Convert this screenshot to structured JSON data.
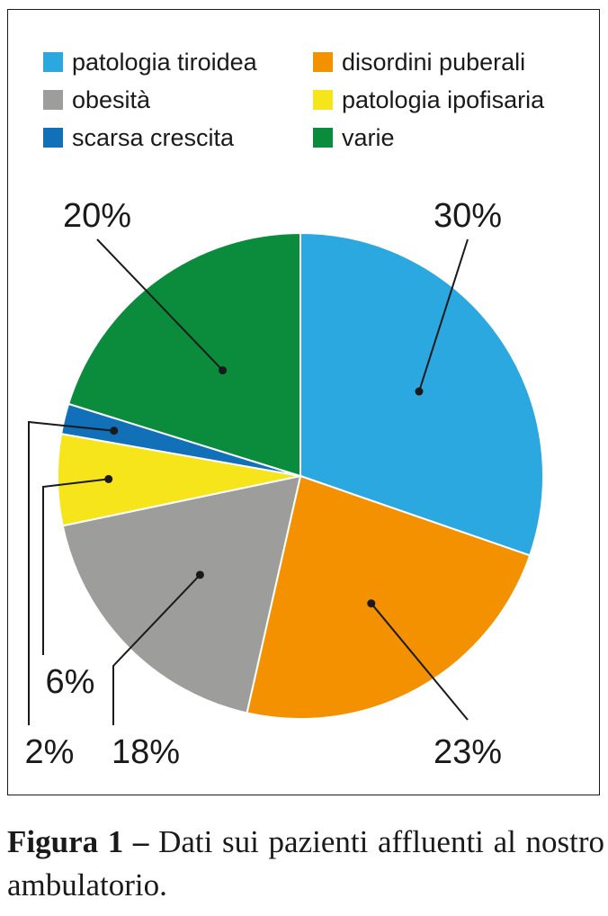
{
  "chart_data": {
    "type": "pie",
    "series": [
      {
        "label": "patologia tiroidea",
        "value": 30,
        "value_label": "30%",
        "color": "#2CA8E1"
      },
      {
        "label": "disordini puberali",
        "value": 23,
        "value_label": "23%",
        "color": "#F39100"
      },
      {
        "label": "obesità",
        "value": 18,
        "value_label": "18%",
        "color": "#9D9D9C"
      },
      {
        "label": "patologia ipofisaria",
        "value": 6,
        "value_label": "6%",
        "color": "#F5E51A"
      },
      {
        "label": "scarsa crescita",
        "value": 2,
        "value_label": "2%",
        "color": "#1170B8"
      },
      {
        "label": "varie",
        "value": 20,
        "value_label": "20%",
        "color": "#0B8C3C"
      }
    ],
    "legend_order": [
      "patologia tiroidea",
      "disordini puberali",
      "obesità",
      "patologia ipofisaria",
      "scarsa crescita",
      "varie"
    ],
    "legend_placement": "top"
  },
  "caption": {
    "label": "Figura 1 –",
    "text": " Dati sui pazienti affluenti al nostro ambulatorio."
  }
}
